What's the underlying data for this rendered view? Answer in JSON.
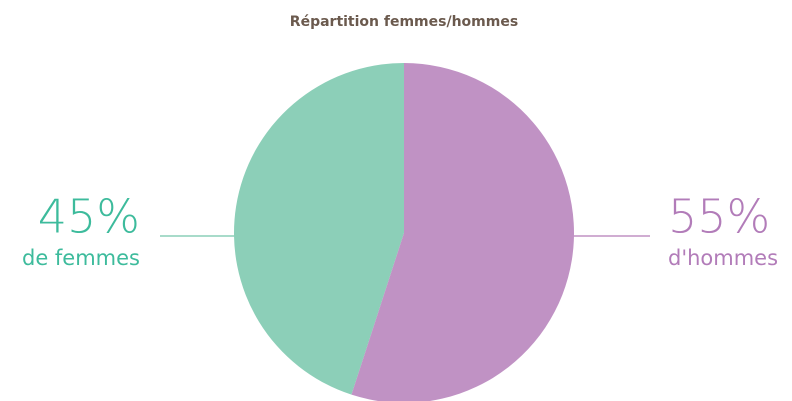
{
  "chart_data": {
    "type": "pie",
    "title": "Répartition femmes/hommes",
    "categories": [
      "de femmes",
      "d'hommes"
    ],
    "values": [
      45,
      55
    ],
    "value_labels": [
      "45%",
      "55%"
    ],
    "colors": [
      "#8ccfb8",
      "#c092c4"
    ],
    "label_colors": [
      "#3dbb9c",
      "#b27cb9"
    ]
  }
}
